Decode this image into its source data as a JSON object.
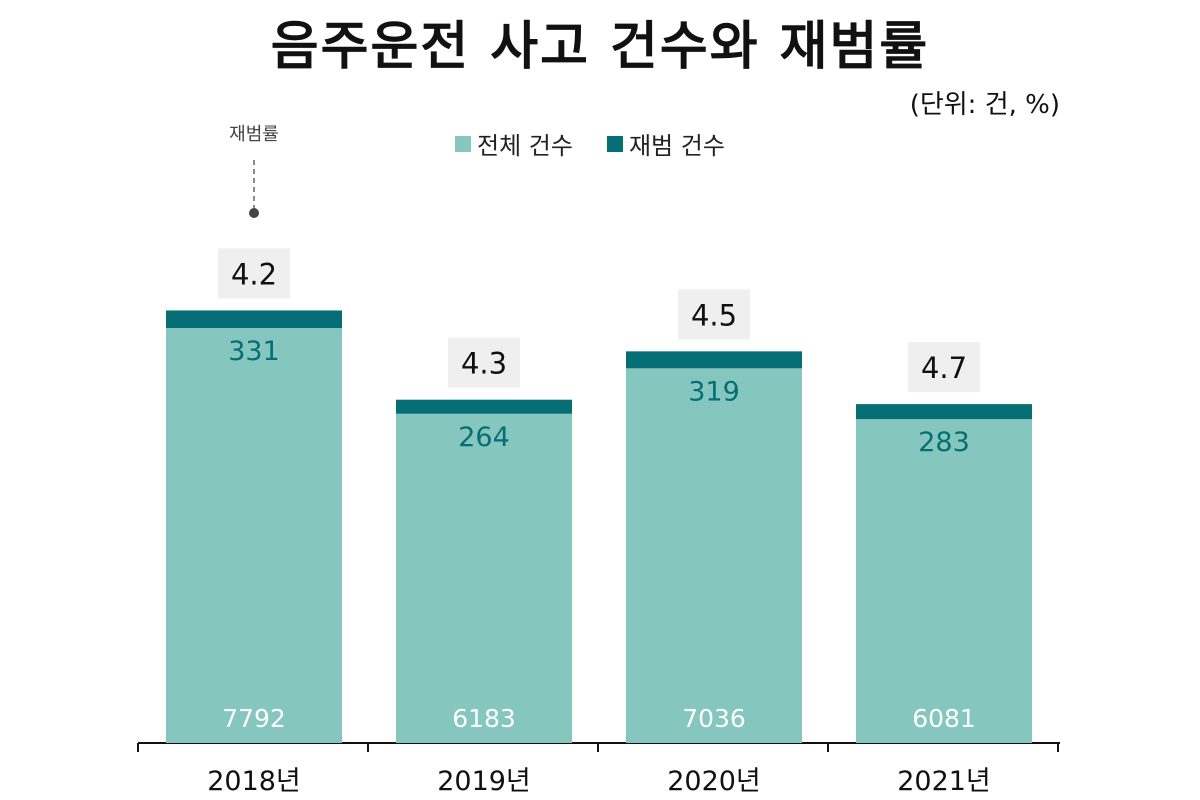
{
  "title": "음주운전 사고 건수와 재범률",
  "unit_note": "(단위: 건, %)",
  "colors": {
    "total": "#85c6bf",
    "repeat": "#066e75",
    "rate_box": "#efefef",
    "axis": "#111111"
  },
  "chart_data": {
    "type": "bar",
    "stacked": true,
    "categories": [
      "2018년",
      "2019년",
      "2020년",
      "2021년"
    ],
    "series": [
      {
        "name": "전체 건수",
        "values": [
          7792,
          6183,
          7036,
          6081
        ]
      },
      {
        "name": "재범 건수",
        "values": [
          331,
          264,
          319,
          283
        ]
      }
    ],
    "rates": [
      4.2,
      4.3,
      4.5,
      4.7
    ],
    "rate_annotation": "재범률",
    "legend_position": "top-center",
    "grid": false
  }
}
